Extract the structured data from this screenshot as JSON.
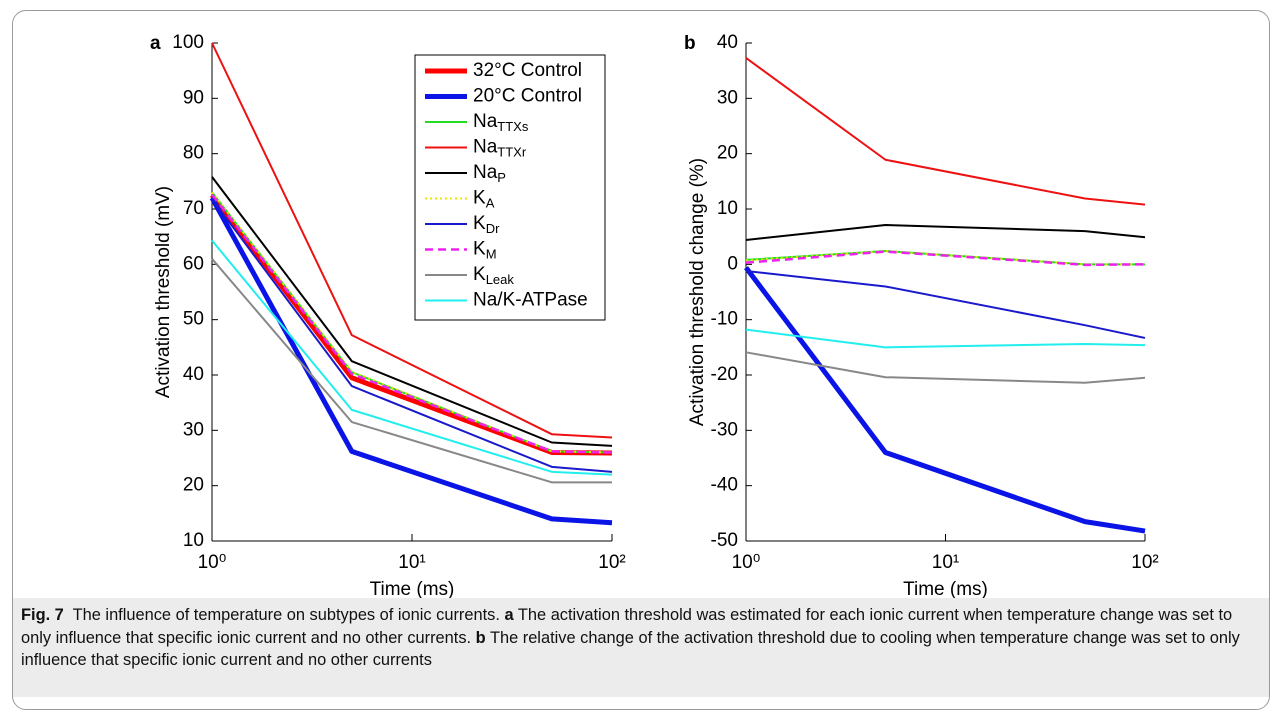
{
  "chart_data": [
    {
      "type": "line",
      "panel_label": "a",
      "ylabel": "Activation threshold (mV)",
      "xlabel": "Time (ms)",
      "xscale": "log",
      "xlim": [
        1,
        100
      ],
      "xticks": [
        {
          "value": 1,
          "label": "10⁰"
        },
        {
          "value": 10,
          "label": "10¹"
        },
        {
          "value": 100,
          "label": "10²"
        }
      ],
      "ylim": [
        10,
        100
      ],
      "yticks": [
        10,
        20,
        30,
        40,
        50,
        60,
        70,
        80,
        90,
        100
      ],
      "legend": "upper right",
      "x": [
        1,
        5,
        50,
        100
      ],
      "series": [
        {
          "name": "32°C Control",
          "color": "#ff0000",
          "linewidth": 5,
          "values": [
            72.5,
            39.5,
            26,
            25.9
          ]
        },
        {
          "name": "20°C Control",
          "color": "#0a14e6",
          "linewidth": 5,
          "values": [
            72,
            26.2,
            14,
            13.3
          ]
        },
        {
          "name": "Na",
          "name_sub": "TTXs",
          "color": "#22dd22",
          "linewidth": 2,
          "values": [
            73,
            40.5,
            26.2,
            26
          ]
        },
        {
          "name": "Na",
          "name_sub": "TTXr",
          "color": "#ee1111",
          "linewidth": 2,
          "values": [
            100,
            47.2,
            29.3,
            28.7
          ]
        },
        {
          "name": "Na",
          "name_sub": "P",
          "color": "#000000",
          "linewidth": 2,
          "values": [
            75.8,
            42.5,
            27.8,
            27.2
          ]
        },
        {
          "name": "K",
          "name_sub": "A",
          "color": "#e6e600",
          "linewidth": 2,
          "linestyle": "dotted",
          "values": [
            73,
            40.6,
            26.2,
            26
          ]
        },
        {
          "name": "K",
          "name_sub": "Dr",
          "color": "#1a1acc",
          "linewidth": 2,
          "values": [
            71.8,
            38,
            23.4,
            22.5
          ]
        },
        {
          "name": "K",
          "name_sub": "M",
          "color": "#ee22ee",
          "linewidth": 2.5,
          "linestyle": "dashed",
          "values": [
            72.6,
            40.2,
            26.2,
            26
          ]
        },
        {
          "name": "K",
          "name_sub": "Leak",
          "color": "#888888",
          "linewidth": 2,
          "values": [
            61,
            31.5,
            20.6,
            20.6
          ]
        },
        {
          "name": "Na/K-ATPase",
          "color": "#22eeee",
          "linewidth": 2,
          "values": [
            64.3,
            33.7,
            22.5,
            22
          ]
        }
      ]
    },
    {
      "type": "line",
      "panel_label": "b",
      "ylabel": "Activation threshold change (%)",
      "xlabel": "Time (ms)",
      "xscale": "log",
      "xlim": [
        1,
        100
      ],
      "xticks": [
        {
          "value": 1,
          "label": "10⁰"
        },
        {
          "value": 10,
          "label": "10¹"
        },
        {
          "value": 100,
          "label": "10²"
        }
      ],
      "ylim": [
        -50,
        40
      ],
      "yticks": [
        -50,
        -40,
        -30,
        -20,
        -10,
        0,
        10,
        20,
        30,
        40
      ],
      "x": [
        1,
        5,
        50,
        100
      ],
      "series": [
        {
          "color": "#0a14e6",
          "linewidth": 5,
          "values": [
            -0.6,
            -34,
            -46.5,
            -48.2
          ]
        },
        {
          "color": "#22dd22",
          "linewidth": 2,
          "values": [
            0.8,
            2.4,
            0,
            0
          ]
        },
        {
          "color": "#ee1111",
          "linewidth": 2,
          "values": [
            37.3,
            18.9,
            11.9,
            10.8
          ]
        },
        {
          "color": "#000000",
          "linewidth": 2,
          "values": [
            4.4,
            7.1,
            6,
            4.9
          ]
        },
        {
          "color": "#e6e600",
          "linewidth": 2,
          "linestyle": "dotted",
          "values": [
            0.7,
            2.4,
            0,
            0
          ]
        },
        {
          "color": "#1a1acc",
          "linewidth": 2,
          "values": [
            -1.2,
            -4,
            -11,
            -13.3
          ]
        },
        {
          "color": "#ee22ee",
          "linewidth": 2.5,
          "linestyle": "dashed",
          "values": [
            0.3,
            2.3,
            -0.1,
            0
          ]
        },
        {
          "color": "#888888",
          "linewidth": 2,
          "values": [
            -15.9,
            -20.4,
            -21.4,
            -20.5
          ]
        },
        {
          "color": "#22eeee",
          "linewidth": 2,
          "values": [
            -11.8,
            -15,
            -14.4,
            -14.6
          ]
        }
      ]
    }
  ],
  "caption": {
    "figure": "Fig. 7",
    "text": "The influence of temperature on subtypes of ionic currents.",
    "items": [
      {
        "letter": "a",
        "text": "The activation threshold was estimated for each ionic current when temperature change was set to only influence that specific ionic current and no other currents."
      },
      {
        "letter": "b",
        "text": "The relative change of the activation threshold due to cooling when temperature change was set to only influence that specific ionic current and no other currents"
      }
    ]
  }
}
